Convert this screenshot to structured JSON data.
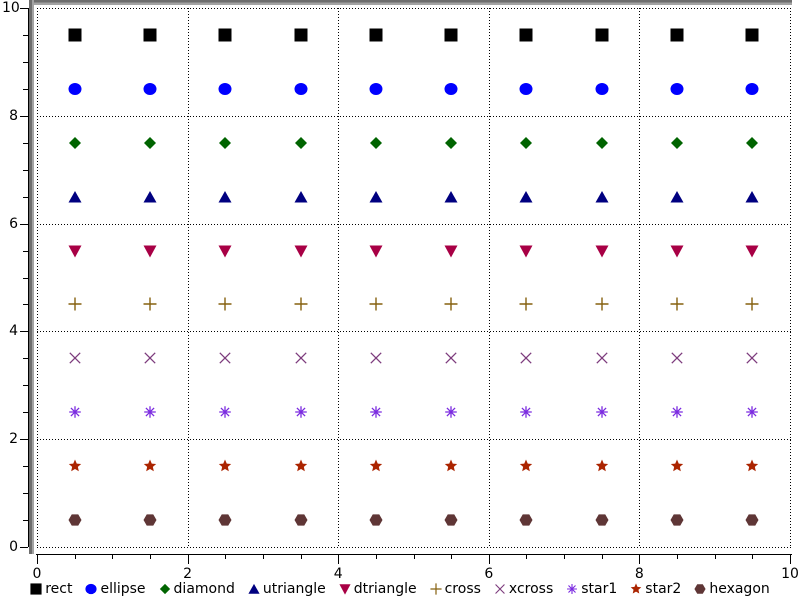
{
  "figure": {
    "background": "#ffffff",
    "frame_dark": "#6e6e6e",
    "frame_light": "#a3a3a3",
    "grid_color": "#000000",
    "axis_color": "#000000"
  },
  "chart_data": {
    "type": "scatter",
    "title": "",
    "xlabel": "",
    "ylabel": "",
    "xlim": [
      0,
      10
    ],
    "ylim": [
      0,
      10
    ],
    "x_major_ticks": [
      0,
      2,
      4,
      6,
      8,
      10
    ],
    "y_major_ticks": [
      0,
      2,
      4,
      6,
      8,
      10
    ],
    "x_tick_labels": [
      "0",
      "2",
      "4",
      "6",
      "8",
      "10"
    ],
    "y_tick_labels": [
      "0",
      "2",
      "4",
      "6",
      "8",
      "10"
    ],
    "minor_tick_interval": 0.5,
    "grid": {
      "style": "dotted",
      "lines_at": [
        0,
        2,
        4,
        6,
        8,
        10
      ]
    },
    "legend_position": "bottom-center",
    "x": [
      0.5,
      1.5,
      2.5,
      3.5,
      4.5,
      5.5,
      6.5,
      7.5,
      8.5,
      9.5
    ],
    "series": [
      {
        "name": "rect",
        "marker": "rect",
        "color": "#000000",
        "y": 9.5
      },
      {
        "name": "ellipse",
        "marker": "ellipse",
        "color": "#0000ff",
        "y": 8.5
      },
      {
        "name": "diamond",
        "marker": "diamond",
        "color": "#006400",
        "y": 7.5
      },
      {
        "name": "utriangle",
        "marker": "utriangle",
        "color": "#000080",
        "y": 6.5
      },
      {
        "name": "dtriangle",
        "marker": "dtriangle",
        "color": "#a80045",
        "y": 5.5
      },
      {
        "name": "cross",
        "marker": "cross",
        "color": "#85600f",
        "y": 4.5
      },
      {
        "name": "xcross",
        "marker": "xcross",
        "color": "#7d3c7d",
        "y": 3.5
      },
      {
        "name": "star1",
        "marker": "star1",
        "color": "#7b2be0",
        "y": 2.5
      },
      {
        "name": "star2",
        "marker": "star2",
        "color": "#ab2400",
        "y": 1.5
      },
      {
        "name": "hexagon",
        "marker": "hexagon",
        "color": "#5f3636",
        "y": 0.5
      }
    ]
  }
}
